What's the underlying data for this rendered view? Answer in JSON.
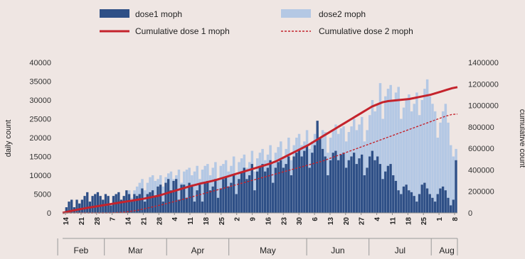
{
  "chart_data": {
    "type": "bar+line",
    "legend": {
      "dose1": "dose1 moph",
      "dose2": "dose2 moph",
      "cum1": "Cumulative dose 1 moph",
      "cum2": "Cumulative dose 2 moph"
    },
    "ylabel_left": "daily count",
    "ylabel_right": "cumulative count",
    "left_ticks": [
      "0",
      "5000",
      "10000",
      "15000",
      "20000",
      "25000",
      "30000",
      "35000",
      "40000"
    ],
    "right_ticks": [
      "0",
      "200000",
      "400000",
      "600000",
      "800000",
      "1000000",
      "1200000",
      "1400000"
    ],
    "ylim_left": [
      0,
      40000
    ],
    "ylim_right": [
      0,
      1400000
    ],
    "x_ticks": [
      "14",
      "21",
      "28",
      "7",
      "14",
      "21",
      "28",
      "4",
      "11",
      "18",
      "25",
      "2",
      "9",
      "16",
      "23",
      "30",
      "6",
      "13",
      "20",
      "27",
      "4",
      "11",
      "18",
      "25",
      "1",
      "8"
    ],
    "months": [
      "Feb",
      "Mar",
      "Apr",
      "May",
      "Jun",
      "Jul",
      "Aug"
    ],
    "dose1": [
      0,
      1500,
      3000,
      3500,
      1500,
      3500,
      2500,
      3500,
      4500,
      5500,
      3000,
      4500,
      5000,
      5500,
      4500,
      3500,
      5000,
      4500,
      2000,
      4500,
      5000,
      5500,
      3500,
      4500,
      6000,
      5000,
      3000,
      5000,
      4500,
      5000,
      6500,
      3000,
      5000,
      5500,
      6000,
      4500,
      7000,
      7500,
      3000,
      8000,
      9000,
      6000,
      8500,
      9000,
      3500,
      7500,
      7500,
      4000,
      8000,
      7000,
      3000,
      6000,
      7500,
      3000,
      8000,
      8500,
      6000,
      7000,
      9000,
      4000,
      6500,
      9000,
      9500,
      7000,
      8000,
      10000,
      5000,
      9000,
      11000,
      12000,
      9000,
      10000,
      13000,
      6000,
      11000,
      12500,
      13000,
      11000,
      12000,
      14000,
      8000,
      12000,
      13500,
      14000,
      12000,
      13000,
      15000,
      10000,
      15000,
      16000,
      17000,
      15000,
      16500,
      18000,
      12000,
      16000,
      18000,
      24500,
      20000,
      17000,
      15000,
      10000,
      14000,
      16000,
      16500,
      14000,
      15500,
      16000,
      12000,
      14000,
      15000,
      16000,
      13000,
      14500,
      15500,
      10000,
      12000,
      15000,
      16500,
      14000,
      15000,
      13000,
      9000,
      11000,
      12500,
      13000,
      10000,
      8500,
      6000,
      5000,
      7000,
      7500,
      6000,
      5500,
      4500,
      3000,
      5000,
      7500,
      8000,
      6500,
      5000,
      4000,
      3000,
      5000,
      6500,
      7000,
      6000,
      4000,
      2000,
      3500,
      14000
    ],
    "dose2": [
      0,
      0,
      0,
      0,
      0,
      0,
      0,
      0,
      0,
      0,
      0,
      0,
      0,
      0,
      0,
      1000,
      1500,
      2000,
      1000,
      2500,
      3000,
      3500,
      2000,
      4000,
      5000,
      6000,
      4000,
      6000,
      7000,
      8000,
      9000,
      6000,
      8000,
      9500,
      10000,
      8500,
      9000,
      10000,
      7000,
      9500,
      10500,
      11000,
      9000,
      10000,
      11500,
      8000,
      11000,
      11500,
      12000,
      10000,
      11000,
      12500,
      9000,
      11500,
      12500,
      13000,
      10000,
      12000,
      13500,
      9000,
      12500,
      13000,
      14000,
      11000,
      12500,
      15000,
      10000,
      13500,
      14500,
      15500,
      12000,
      13500,
      16500,
      11000,
      14500,
      16000,
      17000,
      14000,
      15500,
      18000,
      13000,
      16000,
      17500,
      19000,
      15000,
      17000,
      20000,
      14000,
      18000,
      20000,
      21000,
      18000,
      19000,
      22000,
      17000,
      19000,
      21000,
      23000,
      20000,
      22000,
      21500,
      16000,
      20000,
      22000,
      23500,
      21000,
      22500,
      23000,
      19000,
      21500,
      23000,
      25000,
      22000,
      23500,
      25500,
      19000,
      22000,
      26000,
      30000,
      27000,
      29000,
      34500,
      25000,
      31000,
      33000,
      34000,
      30000,
      32000,
      33500,
      25000,
      28000,
      30000,
      31500,
      27000,
      29000,
      32000,
      26000,
      30000,
      33000,
      35500,
      31000,
      29000,
      27000,
      20000,
      24000,
      27000,
      29000,
      24000,
      18000,
      15000,
      17000
    ],
    "cum1": [
      0,
      12000,
      22000,
      32000,
      41000,
      50000,
      58000,
      66000,
      74000,
      82000,
      90000,
      98000,
      106000,
      114000,
      122000,
      130000,
      140000,
      150000,
      160000,
      175000,
      190000,
      205000,
      220000,
      235000,
      250000,
      262000,
      275000,
      285000,
      297000,
      310000,
      325000,
      340000,
      355000,
      370000,
      385000,
      400000,
      415000,
      430000,
      445000,
      460000,
      480000,
      505000,
      530000,
      555000,
      580000,
      605000,
      630000,
      660000,
      690000,
      720000,
      750000,
      780000,
      810000,
      840000,
      870000,
      900000,
      930000,
      960000,
      990000,
      1010000,
      1030000,
      1040000,
      1045000,
      1050000,
      1055000,
      1060000,
      1070000,
      1080000,
      1090000,
      1100000,
      1115000,
      1130000,
      1145000,
      1160000,
      1170000
    ],
    "cum2": [
      0,
      0,
      0,
      0,
      0,
      0,
      0,
      0,
      0,
      2000,
      5000,
      10000,
      18000,
      28000,
      40000,
      52000,
      65000,
      78000,
      92000,
      106000,
      120000,
      135000,
      150000,
      165000,
      180000,
      195000,
      210000,
      225000,
      240000,
      255000,
      270000,
      285000,
      300000,
      315000,
      330000,
      345000,
      360000,
      375000,
      390000,
      405000,
      420000,
      435000,
      450000,
      465000,
      480000,
      500000,
      520000,
      540000,
      560000,
      580000,
      600000,
      620000,
      640000,
      660000,
      680000,
      700000,
      720000,
      740000,
      760000,
      780000,
      800000,
      820000,
      840000,
      860000,
      880000,
      900000,
      915000,
      920000
    ]
  }
}
